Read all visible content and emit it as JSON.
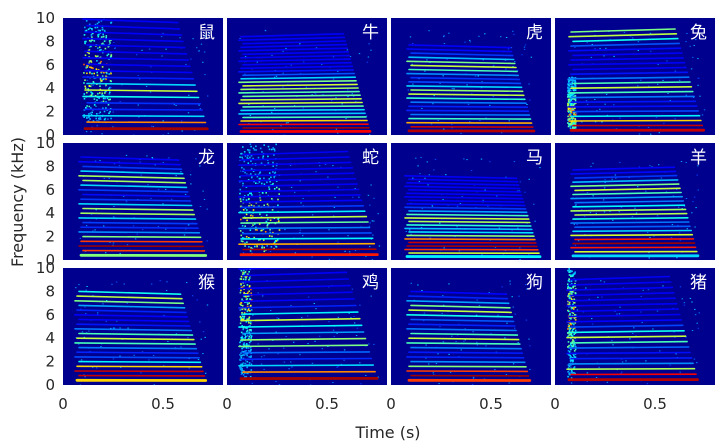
{
  "chart_data": {
    "type": "heatmap",
    "xlabel": "Time (s)",
    "ylabel": "Frequency (kHz)",
    "xlim": [
      0,
      0.8
    ],
    "ylim": [
      0,
      10
    ],
    "x_ticks": [
      0,
      0.5
    ],
    "x_tick_labels": [
      "0",
      "0.5"
    ],
    "y_ticks": [
      0,
      2,
      4,
      6,
      8,
      10
    ],
    "y_tick_labels": [
      "0",
      "2",
      "4",
      "6",
      "8",
      "10"
    ],
    "colormap": "jet",
    "background_color": "#00008f",
    "grid": false,
    "legend": "none",
    "rows": 3,
    "cols": 4,
    "panels": [
      {
        "label": "鼠",
        "onset": 0.1,
        "offset": 0.73,
        "fundamental_khz": 0.55,
        "harmonic_spacing_khz": 0.55,
        "harmonics": 18,
        "burst": {
          "start": 0.1,
          "end": 0.24,
          "low_khz": 1.2,
          "high_khz": 10,
          "center_khz": 5.6
        },
        "formants_khz": [
          0.6,
          3.8
        ]
      },
      {
        "label": "牛",
        "onset": 0.06,
        "offset": 0.72,
        "fundamental_khz": 0.3,
        "harmonic_spacing_khz": 0.3,
        "harmonics": 28,
        "burst": null,
        "formants_khz": [
          0.6,
          2.8,
          4.2
        ]
      },
      {
        "label": "虎",
        "onset": 0.08,
        "offset": 0.72,
        "fundamental_khz": 0.35,
        "harmonic_spacing_khz": 0.35,
        "harmonics": 22,
        "burst": null,
        "formants_khz": [
          0.5,
          3.6,
          6.0
        ]
      },
      {
        "label": "兔",
        "onset": 0.07,
        "offset": 0.75,
        "fundamental_khz": 0.4,
        "harmonic_spacing_khz": 0.4,
        "harmonics": 22,
        "burst": {
          "start": 0.06,
          "end": 0.1,
          "low_khz": 0.5,
          "high_khz": 5,
          "center_khz": 2.0
        },
        "formants_khz": [
          0.6,
          4.0,
          8.5
        ]
      },
      {
        "label": "龙",
        "onset": 0.08,
        "offset": 0.72,
        "fundamental_khz": 0.4,
        "harmonic_spacing_khz": 0.4,
        "harmonics": 22,
        "burst": null,
        "formants_khz": [
          1.2,
          4.2,
          7.0
        ]
      },
      {
        "label": "蛇",
        "onset": 0.06,
        "offset": 0.76,
        "fundamental_khz": 0.45,
        "harmonic_spacing_khz": 0.45,
        "harmonics": 20,
        "burst": {
          "start": 0.06,
          "end": 0.26,
          "low_khz": 0.8,
          "high_khz": 10,
          "center_khz": 3.2
        },
        "formants_khz": [
          0.8,
          3.5
        ]
      },
      {
        "label": "马",
        "onset": 0.07,
        "offset": 0.75,
        "fundamental_khz": 0.3,
        "harmonic_spacing_khz": 0.3,
        "harmonics": 24,
        "burst": null,
        "formants_khz": [
          1.3,
          3.5
        ]
      },
      {
        "label": "羊",
        "onset": 0.08,
        "offset": 0.72,
        "fundamental_khz": 0.35,
        "harmonic_spacing_khz": 0.35,
        "harmonics": 22,
        "burst": null,
        "formants_khz": [
          1.4,
          4.0,
          6.0
        ]
      },
      {
        "label": "猴",
        "onset": 0.06,
        "offset": 0.72,
        "fundamental_khz": 0.4,
        "harmonic_spacing_khz": 0.4,
        "harmonics": 20,
        "burst": null,
        "formants_khz": [
          1.0,
          4.0,
          7.5
        ]
      },
      {
        "label": "鸡",
        "onset": 0.06,
        "offset": 0.76,
        "fundamental_khz": 0.55,
        "harmonic_spacing_khz": 0.55,
        "harmonics": 18,
        "burst": {
          "start": 0.06,
          "end": 0.12,
          "low_khz": 0.5,
          "high_khz": 10,
          "center_khz": 7.5
        },
        "formants_khz": [
          0.6,
          3.6,
          5.5
        ]
      },
      {
        "label": "狗",
        "onset": 0.08,
        "offset": 0.7,
        "fundamental_khz": 0.4,
        "harmonic_spacing_khz": 0.4,
        "harmonics": 20,
        "burst": null,
        "formants_khz": [
          0.8,
          4.0,
          6.5
        ]
      },
      {
        "label": "猪",
        "onset": 0.06,
        "offset": 0.72,
        "fundamental_khz": 0.45,
        "harmonic_spacing_khz": 0.45,
        "harmonics": 20,
        "burst": {
          "start": 0.06,
          "end": 0.1,
          "low_khz": 0.5,
          "high_khz": 10,
          "center_khz": 6.0
        },
        "formants_khz": [
          0.6,
          4.0
        ]
      }
    ]
  }
}
